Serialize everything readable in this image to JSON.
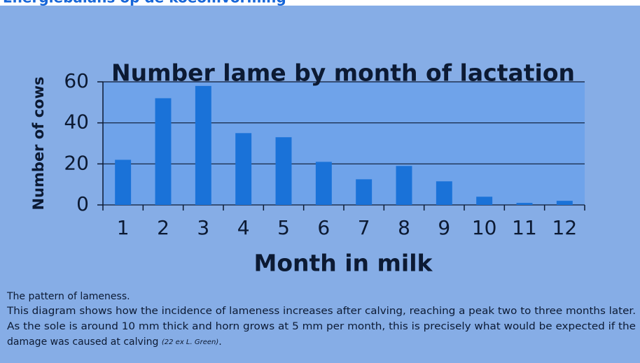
{
  "header": {
    "title": "Energiebalans op de koeomvorming"
  },
  "chart_data": {
    "type": "bar",
    "title": "Number lame by month of lactation",
    "x_label": "Month in milk",
    "y_label": "Number of cows",
    "categories": [
      "1",
      "2",
      "3",
      "4",
      "5",
      "6",
      "7",
      "8",
      "9",
      "10",
      "11",
      "12"
    ],
    "values": [
      22,
      52,
      58,
      35,
      33,
      21,
      12.5,
      19,
      11.5,
      4,
      1,
      2
    ],
    "color": "#1a72d8",
    "ylim": [
      0,
      60
    ],
    "yticks": [
      0,
      20,
      40,
      60
    ],
    "grid": true
  },
  "caption": {
    "lines": [
      "The pattern of lameness.",
      "This diagram shows how the incidence of lameness increases after calving, reaching a peak two to three months later.",
      "As the sole is around 10 mm thick and horn grows at 5 mm per month, this is precisely what would be expected if the",
      "damage was caused at calving "
    ],
    "citation": "(22 ex L. Green)",
    "end": "."
  }
}
